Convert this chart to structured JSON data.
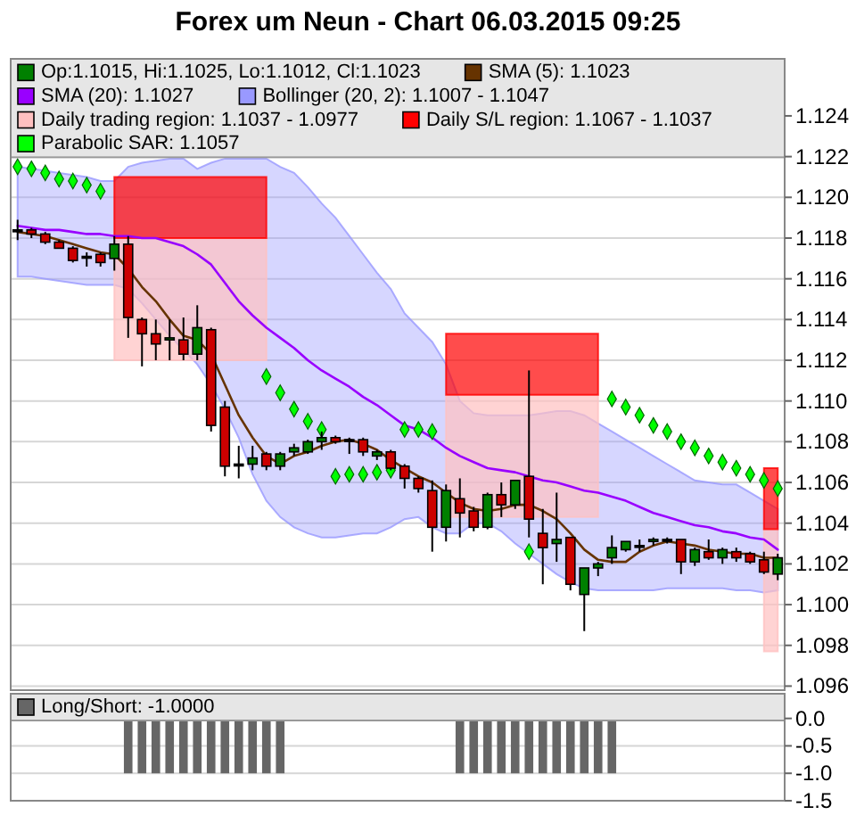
{
  "chart_data": [
    {
      "type": "candlestick",
      "title": "Forex um Neun - Chart 06.03.2015 09:25",
      "categories": [
        null,
        null,
        null,
        null,
        null,
        null,
        null,
        null,
        null,
        null,
        null,
        null,
        null,
        null,
        null,
        null,
        null,
        null,
        null,
        null,
        null,
        null,
        null,
        null,
        null,
        null,
        null,
        null,
        null,
        null,
        null,
        null,
        null,
        null,
        null,
        null,
        null,
        null,
        null,
        null,
        null,
        null,
        null,
        null,
        null,
        null,
        null,
        null,
        null,
        null,
        null,
        null,
        null,
        null,
        null,
        null
      ],
      "ylim": [
        1.0958,
        1.1268
      ],
      "yticks": [
        {
          "value": 1.096,
          "label": "1.096"
        },
        {
          "value": 1.098,
          "label": "1.098"
        },
        {
          "value": 1.1,
          "label": "1.100"
        },
        {
          "value": 1.102,
          "label": "1.102"
        },
        {
          "value": 1.104,
          "label": "1.104"
        },
        {
          "value": 1.106,
          "label": "1.106"
        },
        {
          "value": 1.108,
          "label": "1.108"
        },
        {
          "value": 1.11,
          "label": "1.110"
        },
        {
          "value": 1.112,
          "label": "1.112"
        },
        {
          "value": 1.114,
          "label": "1.114"
        },
        {
          "value": 1.116,
          "label": "1.116"
        },
        {
          "value": 1.118,
          "label": "1.118"
        },
        {
          "value": 1.12,
          "label": "1.120"
        },
        {
          "value": 1.122,
          "label": "1.122"
        },
        {
          "value": 1.124,
          "label": "1.124"
        }
      ],
      "grid": "y",
      "legend": "top",
      "series": [
        {
          "type": "candlestick",
          "name": "Op:1.1015, Hi:1.1025, Lo:1.1012, Cl:1.1023",
          "color": "#008000",
          "ohlc": [
            [
              1.1184,
              1.1189,
              1.1179,
              1.1184
            ],
            [
              1.1184,
              1.1185,
              1.118,
              1.1182
            ],
            [
              1.1182,
              1.1183,
              1.1177,
              1.1178
            ],
            [
              1.1178,
              1.1179,
              1.1175,
              1.1175
            ],
            [
              1.1175,
              1.1176,
              1.1168,
              1.1169
            ],
            [
              1.1171,
              1.1173,
              1.1166,
              1.1171
            ],
            [
              1.1172,
              1.1173,
              1.1166,
              1.1168
            ],
            [
              1.117,
              1.1181,
              1.1164,
              1.1177
            ],
            [
              1.1177,
              1.1181,
              1.1131,
              1.1141
            ],
            [
              1.114,
              1.1141,
              1.1117,
              1.1133
            ],
            [
              1.1133,
              1.114,
              1.112,
              1.1128
            ],
            [
              1.113,
              1.114,
              1.112,
              1.1131
            ],
            [
              1.113,
              1.1141,
              1.112,
              1.1123
            ],
            [
              1.1123,
              1.1147,
              1.112,
              1.1136
            ],
            [
              1.1135,
              1.1136,
              1.1085,
              1.1088
            ],
            [
              1.1097,
              1.11,
              1.1063,
              1.1068
            ],
            [
              1.1069,
              1.1078,
              1.1062,
              1.1069
            ],
            [
              1.1069,
              1.1078,
              1.1066,
              1.1072
            ],
            [
              1.1074,
              1.1075,
              1.1066,
              1.1068
            ],
            [
              1.1068,
              1.1075,
              1.1066,
              1.1074
            ],
            [
              1.1075,
              1.1079,
              1.1073,
              1.1077
            ],
            [
              1.1075,
              1.1081,
              1.1074,
              1.108
            ],
            [
              1.108,
              1.1085,
              1.1076,
              1.1082
            ],
            [
              1.1082,
              1.1083,
              1.1079,
              1.108
            ],
            [
              1.1081,
              1.1082,
              1.1074,
              1.1081
            ],
            [
              1.1081,
              1.1082,
              1.1073,
              1.1075
            ],
            [
              1.1073,
              1.1076,
              1.1071,
              1.1075
            ],
            [
              1.1075,
              1.1076,
              1.1066,
              1.1067
            ],
            [
              1.1068,
              1.1069,
              1.1057,
              1.1062
            ],
            [
              1.1062,
              1.1063,
              1.1055,
              1.1057
            ],
            [
              1.1056,
              1.1061,
              1.1026,
              1.1038
            ],
            [
              1.1038,
              1.1059,
              1.1031,
              1.1056
            ],
            [
              1.1052,
              1.1062,
              1.1033,
              1.1045
            ],
            [
              1.1046,
              1.1048,
              1.1036,
              1.1038
            ],
            [
              1.1038,
              1.1055,
              1.1037,
              1.1054
            ],
            [
              1.1054,
              1.106,
              1.1043,
              1.1049
            ],
            [
              1.1049,
              1.1061,
              1.1047,
              1.1061
            ],
            [
              1.1063,
              1.1115,
              1.1033,
              1.1042
            ],
            [
              1.1035,
              1.1047,
              1.101,
              1.1028
            ],
            [
              1.103,
              1.1055,
              1.1021,
              1.1032
            ],
            [
              1.1033,
              1.1033,
              1.1007,
              1.101
            ],
            [
              1.1005,
              1.1018,
              1.0987,
              1.1018
            ],
            [
              1.1018,
              1.1021,
              1.1014,
              1.102
            ],
            [
              1.1023,
              1.1034,
              1.102,
              1.1028
            ],
            [
              1.1027,
              1.1031,
              1.1026,
              1.1031
            ],
            [
              1.1029,
              1.1032,
              1.1026,
              1.1029
            ],
            [
              1.1031,
              1.1033,
              1.1029,
              1.1032
            ],
            [
              1.1032,
              1.1033,
              1.103,
              1.1032
            ],
            [
              1.1032,
              1.1032,
              1.1015,
              1.1021
            ],
            [
              1.1021,
              1.1028,
              1.1019,
              1.1027
            ],
            [
              1.1026,
              1.1032,
              1.1022,
              1.1023
            ],
            [
              1.1023,
              1.1028,
              1.102,
              1.1027
            ],
            [
              1.1026,
              1.1028,
              1.1021,
              1.1023
            ],
            [
              1.1025,
              1.1026,
              1.102,
              1.1021
            ],
            [
              1.1022,
              1.1026,
              1.1015,
              1.1016
            ],
            [
              1.1015,
              1.1025,
              1.1012,
              1.1023
            ]
          ],
          "colors": [
            "#000000",
            "#cc0000",
            "#cc0000",
            "#cc0000",
            "#cc0000",
            "#000000",
            "#cc0000",
            "#008000",
            "#cc0000",
            "#cc0000",
            "#cc0000",
            "#008000",
            "#cc0000",
            "#008000",
            "#cc0000",
            "#cc0000",
            "#000000",
            "#008000",
            "#cc0000",
            "#008000",
            "#008000",
            "#008000",
            "#008000",
            "#cc0000",
            "#000000",
            "#cc0000",
            "#008000",
            "#cc0000",
            "#cc0000",
            "#cc0000",
            "#cc0000",
            "#008000",
            "#cc0000",
            "#cc0000",
            "#008000",
            "#cc0000",
            "#008000",
            "#cc0000",
            "#cc0000",
            "#008000",
            "#cc0000",
            "#008000",
            "#008000",
            "#008000",
            "#008000",
            "#000000",
            "#008000",
            "#000000",
            "#cc0000",
            "#008000",
            "#cc0000",
            "#008000",
            "#cc0000",
            "#cc0000",
            "#cc0000",
            "#008000"
          ]
        },
        {
          "type": "line",
          "name": "SMA (5): 1.1023",
          "color": "#663300",
          "values": [
            1.1183,
            1.1182,
            1.1181,
            1.1179,
            1.1177,
            1.1175,
            1.1173,
            1.1172,
            1.1165,
            1.1156,
            1.1149,
            1.114,
            1.1132,
            1.113,
            1.1123,
            1.1108,
            1.1093,
            1.1082,
            1.1073,
            1.1069,
            1.1073,
            1.1075,
            1.1078,
            1.108,
            1.1081,
            1.1079,
            1.1076,
            1.1071,
            1.1067,
            1.1063,
            1.106,
            1.1055,
            1.105,
            1.1047,
            1.1046,
            1.1047,
            1.1049,
            1.1049,
            1.1046,
            1.1042,
            1.1035,
            1.1027,
            1.1022,
            1.1021,
            1.1021,
            1.1026,
            1.1029,
            1.1031,
            1.103,
            1.1029,
            1.1027,
            1.1026,
            1.1025,
            1.1025,
            1.1023,
            1.1023
          ]
        },
        {
          "type": "line",
          "name": "SMA (20): 1.1027",
          "color": "#9900ff",
          "values": [
            1.1186,
            1.1185,
            1.1184,
            1.1184,
            1.1183,
            1.1182,
            1.1182,
            1.1181,
            1.1181,
            1.118,
            1.118,
            1.1178,
            1.1176,
            1.1172,
            1.1167,
            1.1158,
            1.1149,
            1.1142,
            1.1136,
            1.1131,
            1.1126,
            1.112,
            1.1115,
            1.1111,
            1.1107,
            1.1102,
            1.1098,
            1.1093,
            1.1088,
            1.1086,
            1.1082,
            1.1077,
            1.1073,
            1.107,
            1.1067,
            1.1066,
            1.1065,
            1.1063,
            1.1061,
            1.106,
            1.1058,
            1.1056,
            1.1055,
            1.1053,
            1.1051,
            1.1048,
            1.1045,
            1.1043,
            1.1041,
            1.1039,
            1.1038,
            1.1036,
            1.1035,
            1.1033,
            1.1032,
            1.1027
          ]
        },
        {
          "type": "line",
          "name": "Bollinger (20, 2): 1.1007 - 1.1047",
          "color": "#9999ff",
          "values": [
            null,
            null,
            null,
            null,
            null,
            null,
            null,
            null,
            null,
            null,
            null,
            null,
            null,
            null,
            null,
            null,
            null,
            null,
            null,
            null,
            null,
            null,
            null,
            null,
            null,
            null,
            null,
            null,
            null,
            null,
            null,
            null,
            null,
            null,
            null,
            null,
            null,
            null,
            null,
            null,
            null,
            null,
            null,
            null,
            null,
            null,
            null,
            null,
            null,
            null,
            null,
            null,
            null,
            null,
            null,
            null
          ],
          "upper": [
            1.1215,
            1.1214,
            1.1213,
            1.1212,
            1.1211,
            1.121,
            1.1208,
            1.1208,
            1.1215,
            1.1217,
            1.1218,
            1.1219,
            1.1219,
            1.1214,
            1.1217,
            1.1219,
            1.1219,
            1.1219,
            1.1219,
            1.1215,
            1.1212,
            1.1205,
            1.1197,
            1.119,
            1.1181,
            1.1172,
            1.1163,
            1.1155,
            1.1143,
            1.1136,
            1.1129,
            1.1118,
            1.11,
            1.1094,
            1.1093,
            1.1093,
            1.1093,
            1.1093,
            1.1094,
            1.1095,
            1.1095,
            1.1093,
            1.1089,
            1.1085,
            1.1081,
            1.1077,
            1.1073,
            1.1069,
            1.1065,
            1.1061,
            1.106,
            1.1059,
            1.1059,
            1.1055,
            1.1051,
            1.1047
          ],
          "lower": [
            1.1161,
            1.1161,
            1.116,
            1.1159,
            1.1158,
            1.1157,
            1.1157,
            1.1157,
            1.1155,
            1.1148,
            1.114,
            1.1132,
            1.1125,
            1.1118,
            1.1108,
            1.1096,
            1.1082,
            1.1064,
            1.1051,
            1.1043,
            1.1038,
            1.1035,
            1.1033,
            1.1033,
            1.1034,
            1.1035,
            1.1035,
            1.1038,
            1.1042,
            1.1043,
            1.1038,
            1.1035,
            1.1035,
            1.104,
            1.104,
            1.1036,
            1.103,
            1.1025,
            1.102,
            1.1015,
            1.1011,
            1.1008,
            1.1007,
            1.1007,
            1.1007,
            1.1007,
            1.1007,
            1.1008,
            1.1008,
            1.1008,
            1.1008,
            1.1008,
            1.1007,
            1.1007,
            1.1006,
            1.1007
          ]
        },
        {
          "type": "line",
          "name": "Daily trading region: 1.1037 - 1.0977",
          "color": "#ffc0c0",
          "values": [
            null,
            null,
            null,
            null,
            null,
            null,
            null,
            null,
            null,
            null,
            null,
            null,
            null,
            null,
            null,
            null,
            null,
            null,
            null,
            null,
            null,
            null,
            null,
            null,
            null,
            null,
            null,
            null,
            null,
            null,
            null,
            null,
            null,
            null,
            null,
            null,
            null,
            null,
            null,
            null,
            null,
            null,
            null,
            null,
            null,
            null,
            null,
            null,
            null,
            null,
            null,
            null,
            null,
            null,
            null,
            null
          ],
          "upper": [
            null,
            null,
            null,
            null,
            null,
            null,
            null,
            1.118,
            1.118,
            1.118,
            1.118,
            1.118,
            1.118,
            1.118,
            1.118,
            1.118,
            1.118,
            1.118,
            1.118,
            null,
            null,
            null,
            null,
            null,
            null,
            null,
            null,
            null,
            null,
            null,
            null,
            1.1103,
            1.1103,
            1.1103,
            1.1103,
            1.1103,
            1.1103,
            1.1103,
            1.1103,
            1.1103,
            1.1103,
            1.1103,
            1.1103,
            null,
            null,
            null,
            null,
            null,
            null,
            null,
            null,
            null,
            null,
            null,
            1.1037,
            1.1037
          ],
          "lower": [
            null,
            null,
            null,
            null,
            null,
            null,
            null,
            1.112,
            1.112,
            1.112,
            1.112,
            1.112,
            1.112,
            1.112,
            1.112,
            1.112,
            1.112,
            1.112,
            1.112,
            null,
            null,
            null,
            null,
            null,
            null,
            null,
            null,
            null,
            null,
            null,
            null,
            1.1043,
            1.1043,
            1.1043,
            1.1043,
            1.1043,
            1.1043,
            1.1043,
            1.1043,
            1.1043,
            1.1043,
            1.1043,
            1.1043,
            null,
            null,
            null,
            null,
            null,
            null,
            null,
            null,
            null,
            null,
            null,
            1.0977,
            1.0977
          ]
        },
        {
          "type": "line",
          "name": "Daily S/L region: 1.1067 - 1.1037",
          "color": "#ff0000",
          "values": [
            null,
            null,
            null,
            null,
            null,
            null,
            null,
            null,
            null,
            null,
            null,
            null,
            null,
            null,
            null,
            null,
            null,
            null,
            null,
            null,
            null,
            null,
            null,
            null,
            null,
            null,
            null,
            null,
            null,
            null,
            null,
            null,
            null,
            null,
            null,
            null,
            null,
            null,
            null,
            null,
            null,
            null,
            null,
            null,
            null,
            null,
            null,
            null,
            null,
            null,
            null,
            null,
            null,
            null,
            null,
            null
          ],
          "upper": [
            null,
            null,
            null,
            null,
            null,
            null,
            null,
            1.121,
            1.121,
            1.121,
            1.121,
            1.121,
            1.121,
            1.121,
            1.121,
            1.121,
            1.121,
            1.121,
            1.121,
            null,
            null,
            null,
            null,
            null,
            null,
            null,
            null,
            null,
            null,
            null,
            null,
            1.1133,
            1.1133,
            1.1133,
            1.1133,
            1.1133,
            1.1133,
            1.1133,
            1.1133,
            1.1133,
            1.1133,
            1.1133,
            1.1133,
            null,
            null,
            null,
            null,
            null,
            null,
            null,
            null,
            null,
            null,
            null,
            1.1067,
            1.1067
          ],
          "lower": [
            null,
            null,
            null,
            null,
            null,
            null,
            null,
            1.118,
            1.118,
            1.118,
            1.118,
            1.118,
            1.118,
            1.118,
            1.118,
            1.118,
            1.118,
            1.118,
            1.118,
            null,
            null,
            null,
            null,
            null,
            null,
            null,
            null,
            null,
            null,
            null,
            null,
            1.1103,
            1.1103,
            1.1103,
            1.1103,
            1.1103,
            1.1103,
            1.1103,
            1.1103,
            1.1103,
            1.1103,
            1.1103,
            1.1103,
            null,
            null,
            null,
            null,
            null,
            null,
            null,
            null,
            null,
            null,
            null,
            1.1037,
            1.1037
          ]
        },
        {
          "type": "scatter",
          "name": "Parabolic SAR: 1.1057",
          "color": "#00ff00",
          "marker": "diamond",
          "values": [
            1.1215,
            1.1214,
            1.1212,
            1.1209,
            1.1208,
            1.1206,
            1.1203,
            null,
            null,
            null,
            null,
            null,
            null,
            null,
            null,
            null,
            null,
            null,
            1.1112,
            1.1104,
            1.1096,
            1.109,
            1.1086,
            1.1063,
            1.1064,
            1.1064,
            1.1065,
            1.1066,
            1.1086,
            1.1086,
            1.1085,
            null,
            null,
            null,
            null,
            null,
            null,
            1.1026,
            null,
            null,
            null,
            null,
            null,
            1.1101,
            1.1097,
            1.1093,
            1.1088,
            1.1085,
            1.108,
            1.1077,
            1.1073,
            1.107,
            1.1067,
            1.1064,
            1.1061,
            1.1057
          ]
        }
      ]
    },
    {
      "type": "bar",
      "categories": [
        null,
        null,
        null,
        null,
        null,
        null,
        null,
        null,
        null,
        null,
        null,
        null,
        null,
        null,
        null,
        null,
        null,
        null,
        null,
        null,
        null,
        null,
        null,
        null,
        null,
        null,
        null,
        null,
        null,
        null,
        null,
        null,
        null,
        null,
        null,
        null,
        null,
        null,
        null,
        null,
        null,
        null,
        null,
        null,
        null,
        null,
        null,
        null,
        null,
        null,
        null,
        null,
        null,
        null,
        null,
        null
      ],
      "ylim": [
        -1.5,
        0.45
      ],
      "yticks": [
        {
          "value": 0,
          "label": "0.0"
        },
        {
          "value": -0.5,
          "label": "-0.5"
        },
        {
          "value": -1,
          "label": "-1.0"
        },
        {
          "value": -1.5,
          "label": "-1.5"
        }
      ],
      "grid": "y",
      "legend": "top",
      "series": [
        {
          "name": "Long/Short: -1.0000",
          "color": "#666666",
          "values": [
            0,
            0,
            0,
            0,
            0,
            0,
            0,
            0,
            -1,
            -1,
            -1,
            -1,
            -1,
            -1,
            -1,
            -1,
            -1,
            -1,
            -1,
            -1,
            0,
            0,
            0,
            0,
            0,
            0,
            0,
            0,
            0,
            0,
            0,
            0,
            -1,
            -1,
            -1,
            -1,
            -1,
            -1,
            -1,
            -1,
            -1,
            -1,
            -1,
            -1,
            0,
            0,
            0,
            0,
            0,
            0,
            0,
            0,
            0,
            0,
            0,
            0
          ]
        }
      ]
    }
  ]
}
